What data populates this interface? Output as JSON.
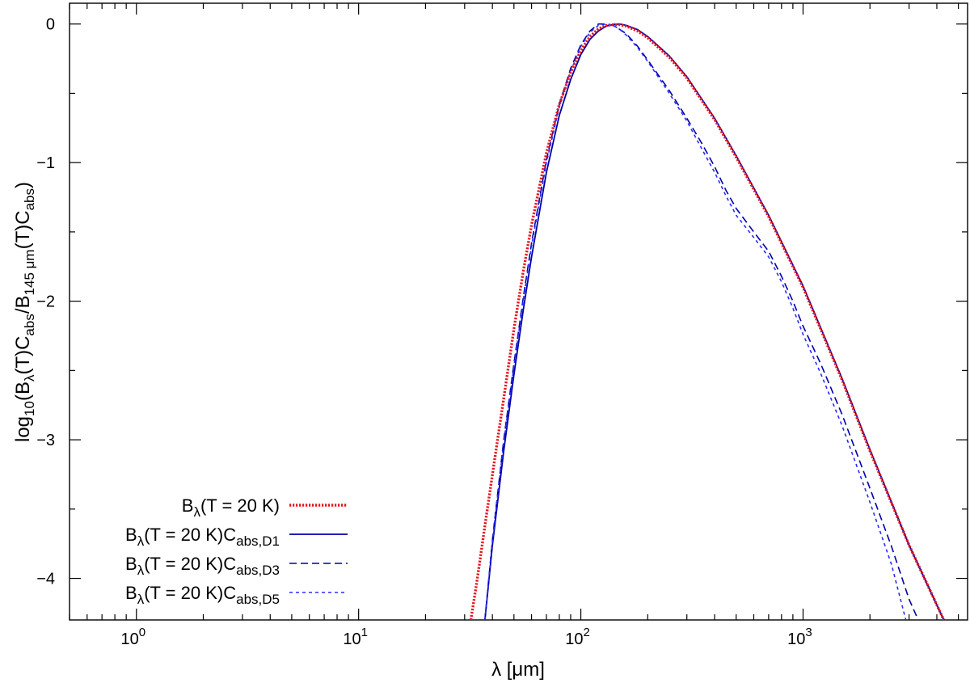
{
  "chart_data": {
    "type": "line",
    "xscale": "log",
    "xlim": [
      0.5,
      5500
    ],
    "ylim": [
      -4.3,
      0.15
    ],
    "x_ticks": [
      {
        "value": 1,
        "base": "10",
        "exp": "0"
      },
      {
        "value": 10,
        "base": "10",
        "exp": "1"
      },
      {
        "value": 100,
        "base": "10",
        "exp": "2"
      },
      {
        "value": 1000,
        "base": "10",
        "exp": "3"
      }
    ],
    "y_ticks": [
      {
        "value": 0,
        "label": "0"
      },
      {
        "value": -1,
        "label": "−1"
      },
      {
        "value": -2,
        "label": "−2"
      },
      {
        "value": -3,
        "label": "−3"
      },
      {
        "value": -4,
        "label": "−4"
      }
    ],
    "xlabel": {
      "lambda": "λ",
      "rest": " [μm]"
    },
    "ylabel": {
      "p1": "log",
      "s1": "10",
      "p2": "(B",
      "s2": "λ",
      "p3": "(T)C",
      "s3": "abs",
      "p4": "/B",
      "s4": "145 μm",
      "p5": "(T)C",
      "s5": "abs",
      "p6": ")"
    },
    "legend_position": "bottom-left",
    "series": [
      {
        "name": {
          "main": "B",
          "sub1": "λ",
          "mid": "(T = 20 K)",
          "sub2": ""
        },
        "color": "#e8141c",
        "style": "dotted",
        "x": [
          32,
          34,
          37,
          40,
          45,
          50,
          55,
          60,
          70,
          80,
          90,
          100,
          110,
          120,
          130,
          140,
          150,
          160,
          180,
          200,
          250,
          300,
          400,
          500,
          700,
          1000,
          1500,
          2000,
          3000,
          4300
        ],
        "y": [
          -4.3,
          -4.03,
          -3.62,
          -3.25,
          -2.7,
          -2.2,
          -1.79,
          -1.45,
          -0.93,
          -0.58,
          -0.35,
          -0.19,
          -0.09,
          -0.035,
          -0.01,
          -0.005,
          -0.005,
          -0.015,
          -0.05,
          -0.1,
          -0.24,
          -0.39,
          -0.69,
          -0.96,
          -1.39,
          -1.9,
          -2.57,
          -3.08,
          -3.76,
          -4.3
        ]
      },
      {
        "name": {
          "main": "B",
          "sub1": "λ",
          "mid": "(T = 20 K)C",
          "sub2": "abs,D1"
        },
        "color": "#0000a8",
        "style": "solid",
        "x": [
          37,
          40,
          45,
          50,
          55,
          60,
          70,
          80,
          90,
          100,
          110,
          120,
          130,
          140,
          150,
          160,
          180,
          200,
          250,
          300,
          400,
          500,
          700,
          1000,
          1500,
          2000,
          3000,
          4300
        ],
        "y": [
          -4.3,
          -3.76,
          -3.08,
          -2.53,
          -2.07,
          -1.68,
          -1.07,
          -0.66,
          -0.4,
          -0.22,
          -0.11,
          -0.05,
          -0.015,
          -0.003,
          0.0,
          -0.01,
          -0.04,
          -0.09,
          -0.23,
          -0.38,
          -0.68,
          -0.95,
          -1.38,
          -1.89,
          -2.56,
          -3.07,
          -3.76,
          -4.3
        ]
      },
      {
        "name": {
          "main": "B",
          "sub1": "λ",
          "mid": "(T = 20 K)C",
          "sub2": "abs,D3"
        },
        "color": "#0000a8",
        "style": "dashed",
        "x": [
          37,
          40,
          45,
          50,
          55,
          60,
          70,
          80,
          90,
          100,
          110,
          120,
          130,
          140,
          150,
          160,
          180,
          200,
          250,
          300,
          350,
          400,
          450,
          500,
          600,
          700,
          800,
          900,
          1000,
          1200,
          1500,
          2000,
          2500,
          3000,
          3300
        ],
        "y": [
          -4.3,
          -3.72,
          -3.0,
          -2.45,
          -1.98,
          -1.58,
          -0.98,
          -0.58,
          -0.32,
          -0.15,
          -0.05,
          0.0,
          0.0,
          -0.01,
          -0.04,
          -0.07,
          -0.16,
          -0.26,
          -0.48,
          -0.68,
          -0.86,
          -1.03,
          -1.2,
          -1.33,
          -1.5,
          -1.64,
          -1.82,
          -2.0,
          -2.18,
          -2.45,
          -2.82,
          -3.35,
          -3.77,
          -4.15,
          -4.3
        ]
      },
      {
        "name": {
          "main": "B",
          "sub1": "λ",
          "mid": "(T = 20 K)C",
          "sub2": "abs,D5"
        },
        "color": "#2a2aff",
        "style": "shortdash",
        "x": [
          37,
          40,
          45,
          50,
          55,
          60,
          70,
          80,
          90,
          100,
          110,
          120,
          130,
          140,
          150,
          160,
          180,
          200,
          250,
          300,
          350,
          400,
          450,
          500,
          600,
          700,
          800,
          900,
          1000,
          1200,
          1500,
          2000,
          2500,
          2900
        ],
        "y": [
          -4.3,
          -3.73,
          -3.02,
          -2.47,
          -2.0,
          -1.6,
          -1.0,
          -0.6,
          -0.34,
          -0.16,
          -0.06,
          -0.01,
          0.0,
          -0.01,
          -0.04,
          -0.08,
          -0.17,
          -0.27,
          -0.5,
          -0.7,
          -0.9,
          -1.07,
          -1.24,
          -1.38,
          -1.54,
          -1.68,
          -1.86,
          -2.05,
          -2.24,
          -2.52,
          -2.9,
          -3.45,
          -3.9,
          -4.3
        ]
      }
    ]
  }
}
